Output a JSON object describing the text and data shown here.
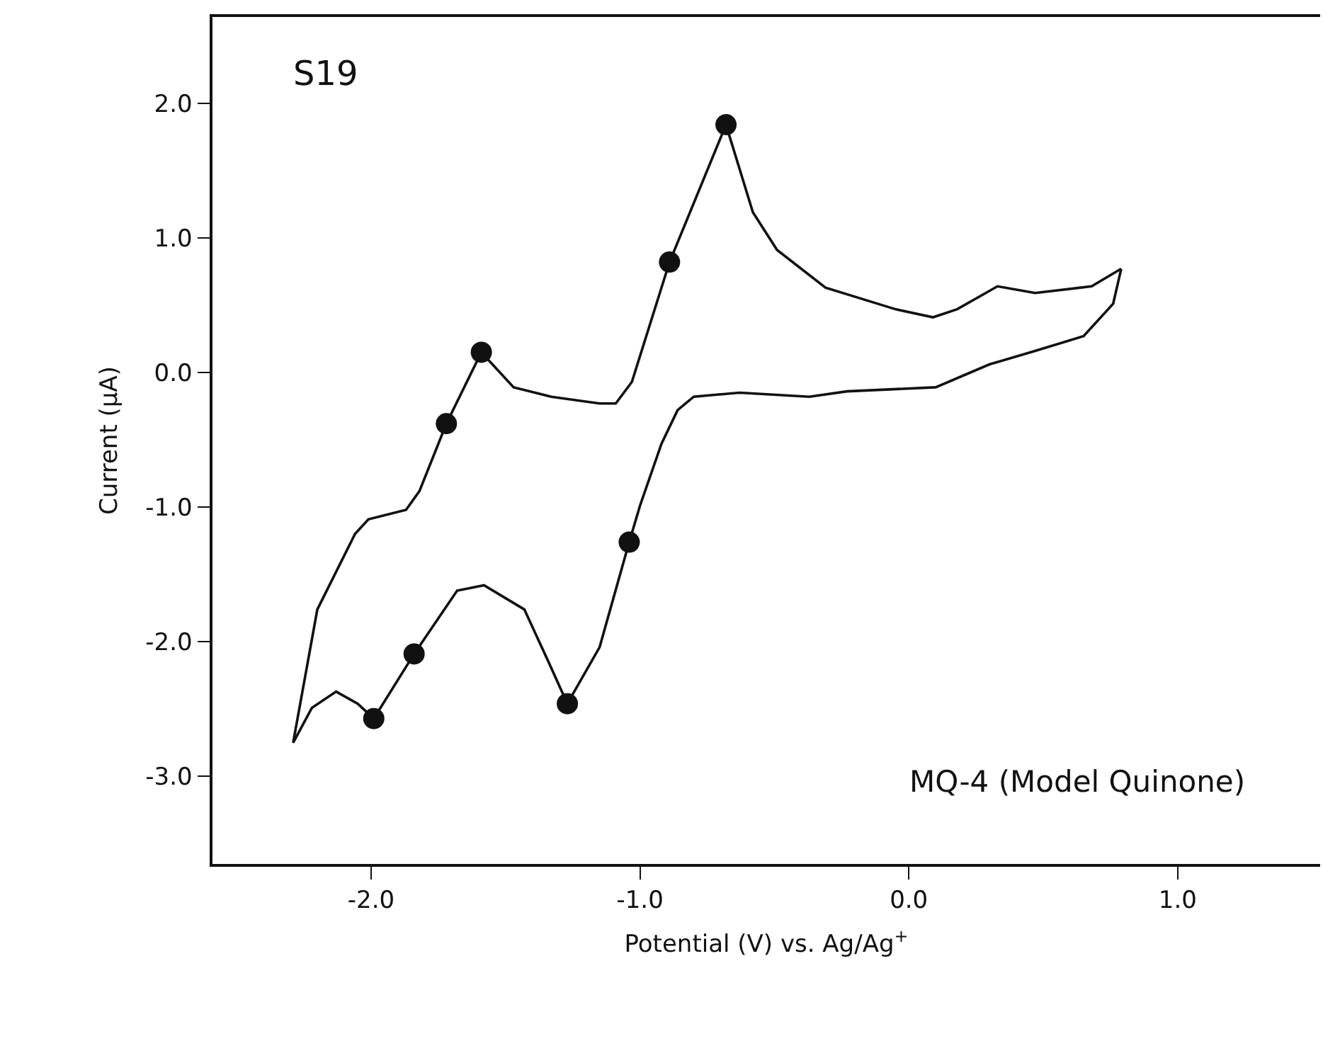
{
  "chart_data": {
    "type": "line",
    "xlabel": "Potential (V) vs. Ag/Ag$^{+}$",
    "ylabel": "Current (μA)",
    "annotations": [
      "S19",
      "MQ-4 (Model Quinone)"
    ],
    "series": [
      {
        "color": "#111111",
        "marker": "none",
        "x": [
          -2.29,
          -2.2,
          -2.06,
          -2.01,
          -1.87,
          -1.82,
          -1.72,
          -1.59,
          -1.47,
          -1.33,
          -1.15,
          -1.09,
          -1.03,
          -0.89,
          -0.68,
          -0.58,
          -0.49,
          -0.31,
          -0.05,
          0.09,
          0.18,
          0.33,
          0.47,
          0.68,
          0.79
        ],
        "values": [
          -2.75,
          -1.76,
          -1.2,
          -1.09,
          -1.02,
          -0.88,
          -0.38,
          0.15,
          -0.11,
          -0.18,
          -0.23,
          -0.23,
          -0.07,
          0.82,
          1.84,
          1.19,
          0.91,
          0.63,
          0.47,
          0.41,
          0.47,
          0.64,
          0.59,
          0.64,
          0.77
        ]
      },
      {
        "color": "#111111",
        "marker": "none",
        "x": [
          0.79,
          0.76,
          0.65,
          0.47,
          0.3,
          0.1,
          -0.23,
          -0.37,
          -0.63,
          -0.8,
          -0.86,
          -0.92,
          -1.0,
          -1.04,
          -1.15,
          -1.27,
          -1.34,
          -1.43,
          -1.58,
          -1.68,
          -1.84,
          -1.99,
          -2.05,
          -2.13,
          -2.22,
          -2.29
        ],
        "values": [
          0.77,
          0.51,
          0.27,
          0.16,
          0.06,
          -0.11,
          -0.14,
          -0.18,
          -0.15,
          -0.18,
          -0.28,
          -0.53,
          -0.99,
          -1.26,
          -2.04,
          -2.46,
          -2.15,
          -1.76,
          -1.58,
          -1.62,
          -2.09,
          -2.57,
          -2.46,
          -2.37,
          -2.49,
          -2.75
        ]
      },
      {
        "type": "scatter",
        "color": "#111111",
        "marker": "circle",
        "x": [
          -1.72,
          -1.59,
          -0.89,
          -0.68,
          -1.04,
          -1.27,
          -1.84,
          -1.99
        ],
        "values": [
          -0.38,
          0.15,
          0.82,
          1.84,
          -1.26,
          -2.46,
          -2.09,
          -2.57
        ]
      }
    ],
    "xlim": [
      -2.59,
      1.53
    ],
    "ylim": [
      -3.65,
      2.64
    ],
    "xticks": [
      {
        "value": -2,
        "label": "-2.0"
      },
      {
        "value": -1,
        "label": "-1.0"
      },
      {
        "value": 0,
        "label": "0.0"
      },
      {
        "value": 1,
        "label": "1.0"
      }
    ],
    "yticks": [
      {
        "value": -3,
        "label": "-3.0"
      },
      {
        "value": -2,
        "label": "-2.0"
      },
      {
        "value": -1,
        "label": "-1.0"
      },
      {
        "value": 0,
        "label": "0.0"
      },
      {
        "value": 1,
        "label": "1.0"
      },
      {
        "value": 2,
        "label": "2.0"
      }
    ]
  }
}
